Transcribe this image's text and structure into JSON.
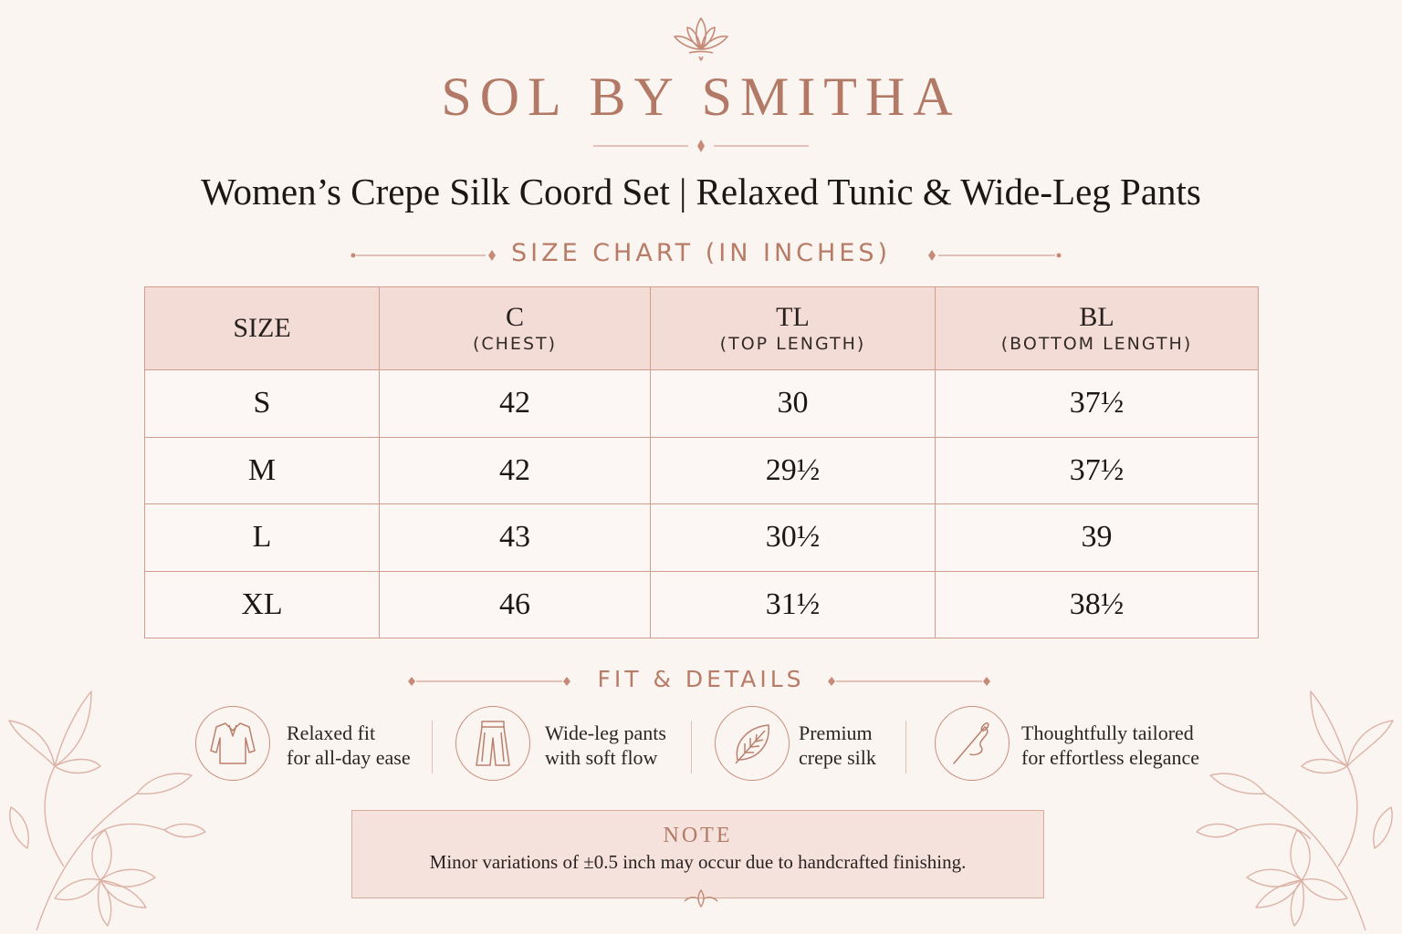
{
  "header": {
    "brand": "SOL BY SMITHA",
    "subtitle": "Women’s Crepe Silk Coord Set | Relaxed Tunic & Wide-Leg Pants",
    "logo_icon": "lotus-icon"
  },
  "size_chart": {
    "title": "SIZE CHART (IN INCHES)",
    "columns": [
      {
        "abbr": "SIZE",
        "full": ""
      },
      {
        "abbr": "C",
        "full": "(CHEST)"
      },
      {
        "abbr": "TL",
        "full": "(TOP LENGTH)"
      },
      {
        "abbr": "BL",
        "full": "(BOTTOM LENGTH)"
      }
    ],
    "rows": [
      [
        "S",
        "42",
        "30",
        "37½"
      ],
      [
        "M",
        "42",
        "29½",
        "37½"
      ],
      [
        "L",
        "43",
        "30½",
        "39"
      ],
      [
        "XL",
        "46",
        "31½",
        "38½"
      ]
    ]
  },
  "fit_details": {
    "title": "FIT & DETAILS",
    "items": [
      {
        "icon": "tunic-icon",
        "line1": "Relaxed fit",
        "line2": "for all-day ease"
      },
      {
        "icon": "pants-icon",
        "line1": "Wide-leg pants",
        "line2": "with soft flow"
      },
      {
        "icon": "leaf-icon",
        "line1": "Premium",
        "line2": "crepe silk"
      },
      {
        "icon": "needle-thread-icon",
        "line1": "Thoughtfully tailored",
        "line2": "for effortless elegance"
      }
    ]
  },
  "note": {
    "title": "NOTE",
    "text": "Minor variations of ±0.5 inch may occur due to handcrafted finishing."
  },
  "colors": {
    "background": "#fbf5f2",
    "accent": "#b27a66",
    "header_fill": "#f4dcd6",
    "border": "#d09d8f"
  }
}
